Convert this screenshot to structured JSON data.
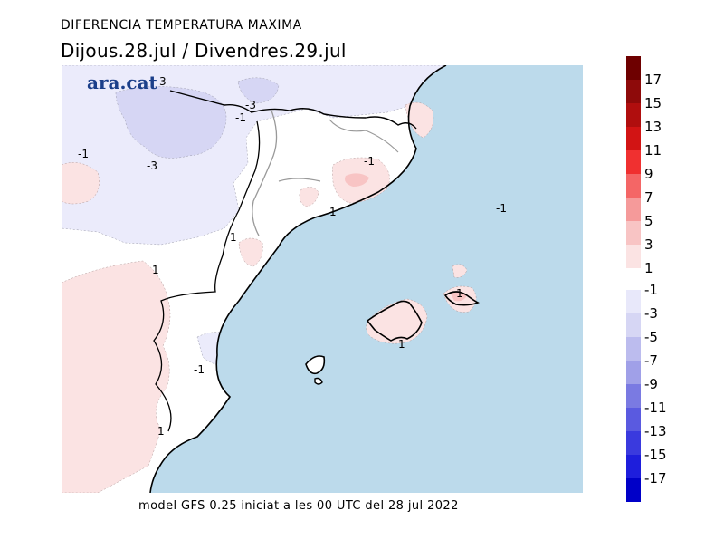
{
  "header": {
    "title": "DIFERENCIA TEMPERATURA MAXIMA",
    "subtitle": "Dijous.28.jul / Divendres.29.jul"
  },
  "logo": {
    "text": "ara.cat"
  },
  "footer": {
    "caption": "model GFS 0.25 iniciat a les 00 UTC del 28 jul 2022"
  },
  "contour_labels": [
    "3",
    "-3",
    "-1",
    "-3",
    "-1",
    "-1",
    "1",
    "-1",
    "1",
    "1",
    "1",
    "1",
    "-1",
    "1"
  ],
  "legend": {
    "positive": [
      {
        "label": "17",
        "color": "#6e0000"
      },
      {
        "label": "15",
        "color": "#8e0a0a"
      },
      {
        "label": "13",
        "color": "#b00e0e"
      },
      {
        "label": "11",
        "color": "#d21414"
      },
      {
        "label": "9",
        "color": "#f03030"
      },
      {
        "label": "7",
        "color": "#f46666"
      },
      {
        "label": "5",
        "color": "#f59a9a"
      },
      {
        "label": "3",
        "color": "#f8c4c4"
      },
      {
        "label": "1",
        "color": "#fbe3e3"
      }
    ],
    "negative": [
      {
        "label": "-1",
        "color": "#e8e8fa"
      },
      {
        "label": "-3",
        "color": "#d6d6f4"
      },
      {
        "label": "-5",
        "color": "#bcbcee"
      },
      {
        "label": "-7",
        "color": "#a0a0e8"
      },
      {
        "label": "-9",
        "color": "#7a7ae2"
      },
      {
        "label": "-11",
        "color": "#5a5ae0"
      },
      {
        "label": "-13",
        "color": "#3a3ade"
      },
      {
        "label": "-15",
        "color": "#1e1edc"
      },
      {
        "label": "-17",
        "color": "#0000c8"
      }
    ]
  },
  "colors": {
    "sea": "#bcdaeb",
    "land_neutral": "#ffffff",
    "warm_light": "#fbe3e3",
    "warm_mid": "#f8c4c4",
    "warm_core": "#f59a9a",
    "cool_light": "#ebebfb",
    "cool_mid": "#d6d6f4"
  }
}
